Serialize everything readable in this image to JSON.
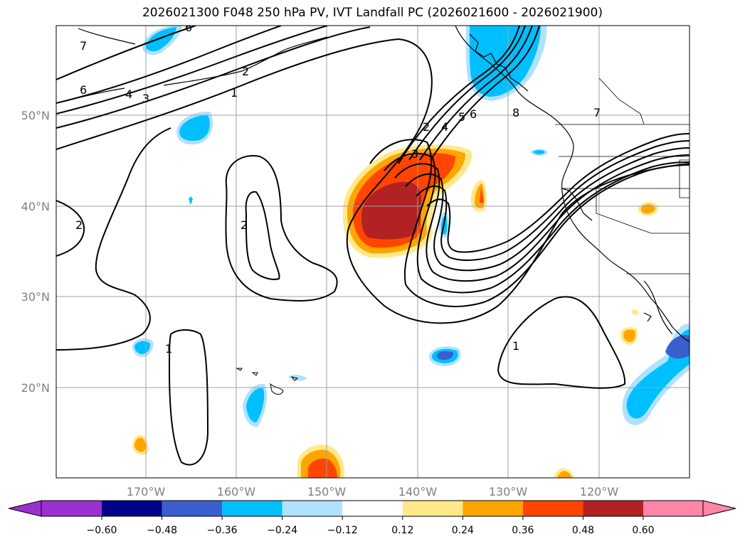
{
  "title": "2026021300 F048 250 hPa PV, IVT Landfall PC (2026021600 - 2026021900)",
  "map": {
    "lon_labels": [
      "170°W",
      "160°W",
      "150°W",
      "140°W",
      "130°W",
      "120°W"
    ],
    "lat_labels": [
      "50°N",
      "40°N",
      "30°N",
      "20°N"
    ],
    "gridline_color": "#a0a0a0",
    "coastline_color": "#000000"
  },
  "contour_labels": [
    {
      "text": "7"
    },
    {
      "text": "6"
    },
    {
      "text": "4"
    },
    {
      "text": "3"
    },
    {
      "text": "2"
    },
    {
      "text": "1"
    },
    {
      "text": "2"
    },
    {
      "text": "2"
    },
    {
      "text": "3"
    },
    {
      "text": "2"
    },
    {
      "text": "4"
    },
    {
      "text": "5"
    },
    {
      "text": "6"
    },
    {
      "text": "8"
    },
    {
      "text": "7"
    },
    {
      "text": "1"
    },
    {
      "text": "1"
    },
    {
      "text": "6"
    }
  ],
  "colorbar": {
    "ticks": [
      "−0.60",
      "−0.48",
      "−0.36",
      "−0.24",
      "−0.12",
      "0.12",
      "0.24",
      "0.36",
      "0.48",
      "0.60"
    ],
    "colors": [
      "#9b30d0",
      "#00008b",
      "#3a5fcd",
      "#00bfff",
      "#b0e2ff",
      "#ffffff",
      "#ffe98a",
      "#ffa500",
      "#ff4500",
      "#b22222",
      "#ff86a8"
    ]
  }
}
